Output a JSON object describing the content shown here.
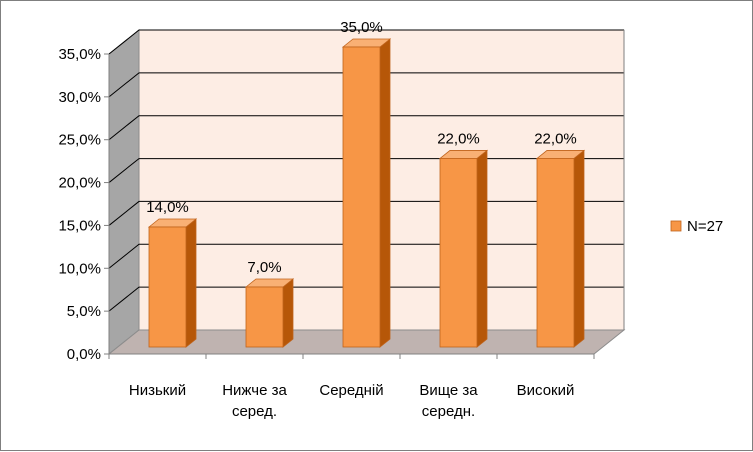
{
  "chart_data": {
    "type": "bar",
    "title": "",
    "xlabel": "",
    "ylabel": "",
    "categories": [
      [
        "Низький"
      ],
      [
        "Нижче за",
        "серед."
      ],
      [
        "Середній"
      ],
      [
        "Вище за",
        "середн."
      ],
      [
        "Високий"
      ]
    ],
    "series": [
      {
        "name": "N=27",
        "values": [
          14.0,
          7.0,
          35.0,
          22.0,
          22.0
        ],
        "labels": [
          "14,0%",
          "7,0%",
          "35,0%",
          "22,0%",
          "22,0%"
        ]
      }
    ],
    "ylim": [
      0,
      35
    ],
    "y_ticks": [
      "0,0%",
      "5,0%",
      "10,0%",
      "15,0%",
      "20,0%",
      "25,0%",
      "30,0%",
      "35,0%"
    ],
    "grid": true,
    "three_d": true,
    "legend": "right",
    "colors": {
      "bar_front": "#F79646",
      "bar_side": "#B65708",
      "bar_top": "#F9B074",
      "bar_stroke": "#C0631B",
      "back_wall": "#FDEDE4",
      "side_wall": "#A6A6A6",
      "floor": "#BFB3B0",
      "grid": "#000000"
    }
  }
}
